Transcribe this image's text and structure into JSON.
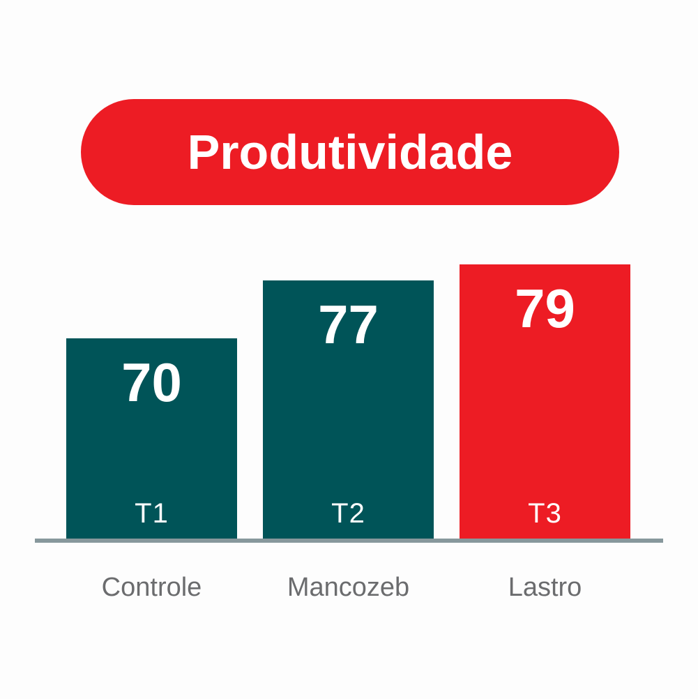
{
  "title": "Produtividade",
  "colors": {
    "accent_red": "#ED1C24",
    "teal": "#005458",
    "baseline_gray": "#87989C",
    "category_label_gray": "#6B6C6E",
    "background": "#FDFDFD",
    "bar_text": "#FFFFFF",
    "title_text": "#FFFFFF"
  },
  "chart_data": {
    "type": "bar",
    "title": "Produtividade",
    "categories": [
      "Controle",
      "Mancozeb",
      "Lastro"
    ],
    "values": [
      70,
      77,
      79
    ],
    "bar_labels": [
      "T1",
      "T2",
      "T3"
    ],
    "bar_colors": [
      "#005458",
      "#005458",
      "#ED1C24"
    ],
    "xlabel": "",
    "ylabel": "",
    "ylim": [
      45.6,
      80
    ],
    "grid": false,
    "legend": false,
    "value_label_position": "inside-top",
    "baseline_axis": true
  }
}
